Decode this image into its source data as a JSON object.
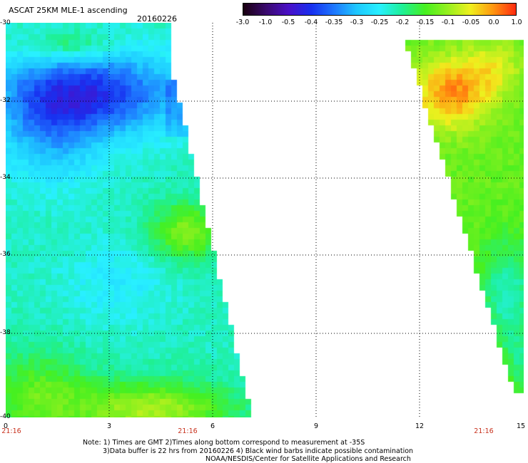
{
  "header": {
    "title": "ASCAT 25KM MLE-1 ascending",
    "date": "20160226"
  },
  "colorbar": {
    "labels": [
      "-3.0",
      "-1.0",
      "-0.5",
      "-0.4",
      "-0.35",
      "-0.3",
      "-0.25",
      "-0.2",
      "-0.15",
      "-0.1",
      "-0.05",
      "0.0",
      "1.0"
    ],
    "colors": [
      "#1a0010",
      "#3a0a6e",
      "#4a10c8",
      "#1830f0",
      "#1e78ff",
      "#1ec8ff",
      "#28f0ff",
      "#1ef096",
      "#46f020",
      "#96f01e",
      "#f0f01e",
      "#ff9610",
      "#ff2a10"
    ]
  },
  "axes": {
    "y_labels": [
      "-30",
      "-32",
      "-34",
      "-36",
      "-38",
      "-40"
    ],
    "x_labels": [
      "0",
      "3",
      "6",
      "9",
      "12",
      "15"
    ],
    "time_labels": [
      "21:16",
      "21:16",
      "21:16"
    ]
  },
  "notes": {
    "line1": "Note: 1) Times are GMT 2)Times along bottom correspond to measurement at -35S",
    "line2": "3)Data buffer is 22 hrs from 20160226 4) Black wind barbs indicate possible contamination",
    "line3": "NOAA/NESDIS/Center for Satellite Applications and Research"
  }
}
